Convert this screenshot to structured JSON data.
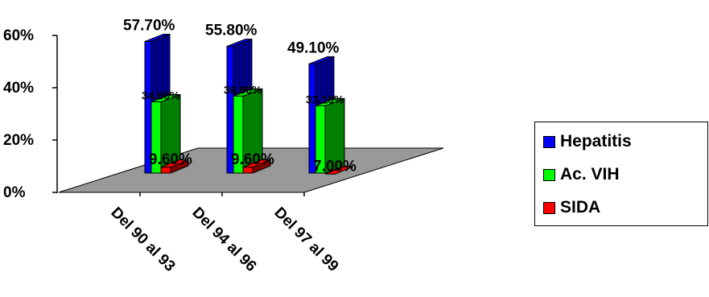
{
  "chart_data": {
    "type": "bar",
    "style": "3d-clustered",
    "categories": [
      "Del 90 al 93",
      "Del 94 al 96",
      "Del 97 al 99"
    ],
    "series": [
      {
        "name": "Hepatitis",
        "color": "#0000ff",
        "side": "#0000a0",
        "values": [
          57.7,
          55.8,
          49.1
        ],
        "labels": [
          "57.70%",
          "55.80%",
          "49.10%"
        ]
      },
      {
        "name": "Ac. VIH",
        "color": "#00ff00",
        "side": "#008000",
        "values": [
          34.6,
          36.8,
          33.1
        ],
        "labels": [
          "34.60%",
          "36.80%",
          "33.10%"
        ]
      },
      {
        "name": "SIDA",
        "color": "#ff0000",
        "side": "#800000",
        "values": [
          9.6,
          9.6,
          7.0
        ],
        "labels": [
          "9.60%",
          "9.60%",
          "7.00%"
        ]
      }
    ],
    "yticks": [
      "0%",
      "20%",
      "40%",
      "60%"
    ],
    "ylim": [
      0,
      60
    ],
    "legend": "right",
    "grid": false,
    "floor_color": "#999999"
  }
}
